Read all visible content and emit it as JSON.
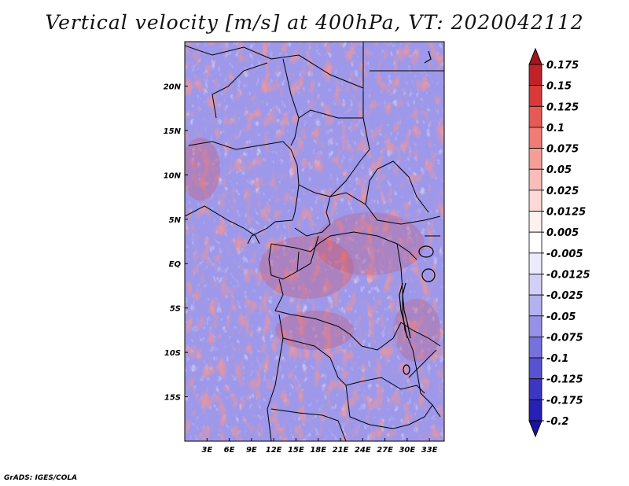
{
  "title": "Vertical velocity [m/s] at 400hPa, VT: 2020042112",
  "credit": "GrADS: IGES/COLA",
  "map": {
    "lon_range": [
      0,
      35
    ],
    "lat_range": [
      -20,
      25
    ],
    "lon_ticks": [
      "3E",
      "6E",
      "9E",
      "12E",
      "15E",
      "18E",
      "21E",
      "24E",
      "27E",
      "30E",
      "33E"
    ],
    "lat_ticks": [
      "20N",
      "15N",
      "10N",
      "5N",
      "EQ",
      "5S",
      "10S",
      "15S"
    ]
  },
  "colorbar": {
    "labels": [
      "0.175",
      "0.15",
      "0.125",
      "0.1",
      "0.075",
      "0.05",
      "0.025",
      "0.0125",
      "0.005",
      "-0.005",
      "-0.0125",
      "-0.025",
      "-0.05",
      "-0.075",
      "-0.1",
      "-0.125",
      "-0.175",
      "-0.2"
    ],
    "colors": [
      "#a4141c",
      "#c02228",
      "#d83a3a",
      "#e65a55",
      "#ef7d76",
      "#f59e98",
      "#f9bdb9",
      "#fcd9d6",
      "#fef0ee",
      "#ffffff",
      "#ecebfb",
      "#d2d0f6",
      "#b4b1ef",
      "#9592e6",
      "#7672dc",
      "#5853d0",
      "#3c36c2",
      "#2720b2",
      "#1a12a0"
    ]
  }
}
